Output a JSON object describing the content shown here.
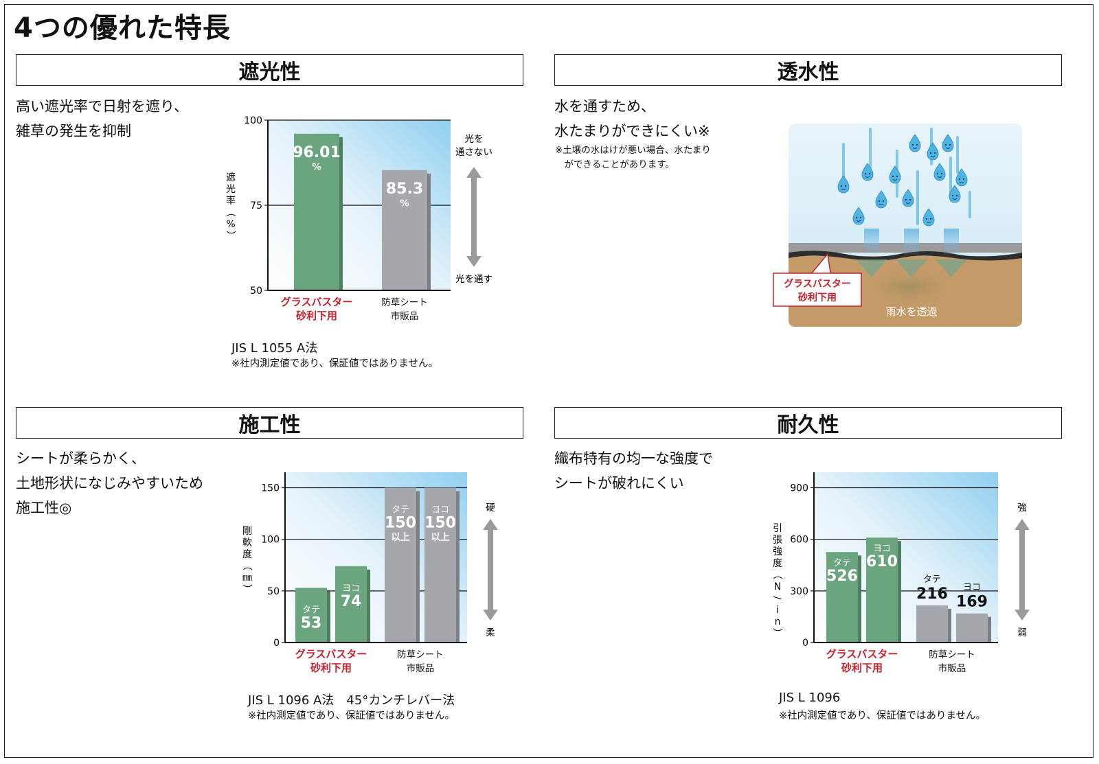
{
  "title": "4つの優れた特長",
  "colors": {
    "product": "#6aa57f",
    "product_shadow": "#4e7f60",
    "generic": "#a4a7ac",
    "generic_shadow": "#7c7f85",
    "accent_red": "#c8202c",
    "arrow": "#9a9a9a"
  },
  "sections": {
    "shading": {
      "heading": "遮光性",
      "description": [
        "高い遮光率で日射を遮り、",
        "雑草の発生を抑制"
      ],
      "jis": "JIS L 1055 A法",
      "footnote": "※社内測定値であり、保証値ではありません。"
    },
    "permeability": {
      "heading": "透水性",
      "description": [
        "水を通すため、",
        "水たまりができにくい※"
      ],
      "note": [
        "※土壌の水はけが悪い場合、水たまり",
        "　ができることがあります。"
      ],
      "illustration": {
        "label_lines": [
          "グラスバスター",
          "砂利下用"
        ],
        "caption": "雨水を透過"
      }
    },
    "workability": {
      "heading": "施工性",
      "description": [
        "シートが柔らかく、",
        "土地形状になじみやすいため",
        "施工性◎"
      ],
      "jis": "JIS L 1096 A法　45°カンチレバー法",
      "footnote": "※社内測定値であり、保証値ではありません。"
    },
    "durability": {
      "heading": "耐久性",
      "description": [
        "織布特有の均一な強度で",
        "シートが破れにくい"
      ],
      "jis": "JIS L 1096",
      "footnote": "※社内測定値であり、保証値ではありません。"
    }
  },
  "chart_data": [
    {
      "id": "shading",
      "type": "bar",
      "categories": [
        "グラスバスター\n砂利下用",
        "防草シート\n市販品"
      ],
      "values": [
        96.01,
        85.3
      ],
      "value_labels": [
        "96.01\n%",
        "85.3\n%"
      ],
      "ylabel": "遮光率（%）",
      "ylim": [
        50,
        100
      ],
      "yticks": [
        50,
        75,
        100
      ],
      "grid": true,
      "scale_arrow": {
        "top": "光を\n通さない",
        "bottom": "光を通す"
      }
    },
    {
      "id": "workability",
      "type": "bar",
      "categories": [
        "グラスバスター\n砂利下用",
        "防草シート\n市販品"
      ],
      "series": [
        {
          "name": "タテ",
          "values": [
            53,
            150
          ],
          "value_labels": [
            "53",
            "150\n以上"
          ]
        },
        {
          "name": "ヨコ",
          "values": [
            74,
            150
          ],
          "value_labels": [
            "74",
            "150\n以上"
          ]
        }
      ],
      "ylabel": "剛軟度（㎜）",
      "ylim": [
        0,
        165
      ],
      "yticks": [
        0,
        50,
        100,
        150
      ],
      "grid": true,
      "scale_arrow": {
        "top": "硬",
        "bottom": "柔"
      }
    },
    {
      "id": "durability",
      "type": "bar",
      "categories": [
        "グラスバスター\n砂利下用",
        "防草シート\n市販品"
      ],
      "series": [
        {
          "name": "タテ",
          "values": [
            526,
            216
          ],
          "value_labels": [
            "526",
            "216"
          ]
        },
        {
          "name": "ヨコ",
          "values": [
            610,
            169
          ],
          "value_labels": [
            "610",
            "169"
          ]
        }
      ],
      "ylabel": "引張強度（N/in）",
      "ylim": [
        0,
        990
      ],
      "yticks": [
        0,
        300,
        600,
        900
      ],
      "grid": true,
      "scale_arrow": {
        "top": "強",
        "bottom": "弱"
      }
    }
  ]
}
